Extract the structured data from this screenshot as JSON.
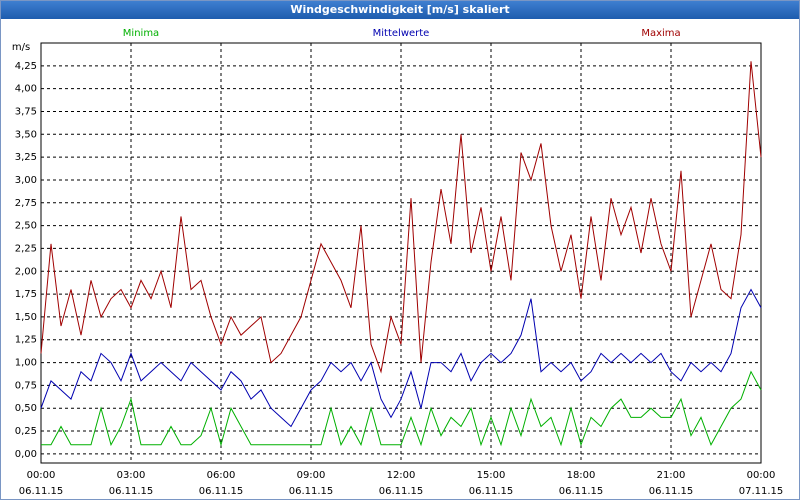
{
  "chart_data": {
    "type": "line",
    "title": "Windgeschwindigkeit [m/s] skaliert",
    "y_label": "m/s",
    "x": [
      0,
      20,
      40,
      60,
      80,
      100,
      120,
      140,
      160,
      180,
      200,
      220,
      240,
      260,
      280,
      300,
      320,
      340,
      360,
      380,
      400,
      420,
      440,
      460,
      480,
      500,
      520,
      540,
      560,
      580,
      600,
      620,
      640,
      660,
      680,
      700,
      720,
      740,
      760,
      780,
      800,
      820,
      840,
      860,
      880,
      900,
      920,
      940,
      960,
      980,
      1000,
      1020,
      1040,
      1060,
      1080,
      1100,
      1120,
      1140,
      1160,
      1180,
      1200,
      1220,
      1240,
      1260,
      1280,
      1300,
      1320,
      1340,
      1360,
      1380,
      1400,
      1420,
      1440
    ],
    "xlim": [
      0,
      1440
    ],
    "xticks": [
      {
        "value": 0,
        "label": "00:00"
      },
      {
        "value": 180,
        "label": "03:00"
      },
      {
        "value": 360,
        "label": "06:00"
      },
      {
        "value": 540,
        "label": "09:00"
      },
      {
        "value": 720,
        "label": "12:00"
      },
      {
        "value": 900,
        "label": "15:00"
      },
      {
        "value": 1080,
        "label": "18:00"
      },
      {
        "value": 1260,
        "label": "21:00"
      },
      {
        "value": 1440,
        "label": "00:00"
      }
    ],
    "xtick_dates": [
      "06.11.15",
      "06.11.15",
      "06.11.15",
      "06.11.15",
      "06.11.15",
      "06.11.15",
      "06.11.15",
      "06.11.15",
      "07.11.15"
    ],
    "ylim": [
      -0.1,
      4.5
    ],
    "yticks": [
      {
        "value": 0,
        "label": "0,00"
      },
      {
        "value": 0.25,
        "label": "0,25"
      },
      {
        "value": 0.5,
        "label": "0,50"
      },
      {
        "value": 0.75,
        "label": "0,75"
      },
      {
        "value": 1,
        "label": "1,00"
      },
      {
        "value": 1.25,
        "label": "1,25"
      },
      {
        "value": 1.5,
        "label": "1,50"
      },
      {
        "value": 1.75,
        "label": "1,75"
      },
      {
        "value": 2,
        "label": "2,00"
      },
      {
        "value": 2.25,
        "label": "2,25"
      },
      {
        "value": 2.5,
        "label": "2,50"
      },
      {
        "value": 2.75,
        "label": "2,75"
      },
      {
        "value": 3,
        "label": "3,00"
      },
      {
        "value": 3.25,
        "label": "3,25"
      },
      {
        "value": 3.5,
        "label": "3,50"
      },
      {
        "value": 3.75,
        "label": "3,75"
      },
      {
        "value": 4,
        "label": "4,00"
      },
      {
        "value": 4.25,
        "label": "4,25"
      }
    ],
    "grid": true,
    "series": [
      {
        "name": "Minima",
        "color": "#00b000",
        "values": [
          0.1,
          0.1,
          0.3,
          0.1,
          0.1,
          0.1,
          0.5,
          0.1,
          0.3,
          0.6,
          0.1,
          0.1,
          0.1,
          0.3,
          0.1,
          0.1,
          0.2,
          0.5,
          0.1,
          0.5,
          0.3,
          0.1,
          0.1,
          0.1,
          0.1,
          0.1,
          0.1,
          0.1,
          0.1,
          0.5,
          0.1,
          0.3,
          0.1,
          0.5,
          0.1,
          0.1,
          0.1,
          0.4,
          0.1,
          0.5,
          0.2,
          0.4,
          0.3,
          0.5,
          0.1,
          0.4,
          0.1,
          0.5,
          0.2,
          0.6,
          0.3,
          0.4,
          0.1,
          0.5,
          0.1,
          0.4,
          0.3,
          0.5,
          0.6,
          0.4,
          0.4,
          0.5,
          0.4,
          0.4,
          0.6,
          0.2,
          0.4,
          0.1,
          0.3,
          0.5,
          0.6,
          0.9,
          0.7
        ]
      },
      {
        "name": "Mittelwerte",
        "color": "#0000b0",
        "values": [
          0.5,
          0.8,
          0.7,
          0.6,
          0.9,
          0.8,
          1.1,
          1.0,
          0.8,
          1.1,
          0.8,
          0.9,
          1.0,
          0.9,
          0.8,
          1.0,
          0.9,
          0.8,
          0.7,
          0.9,
          0.8,
          0.6,
          0.7,
          0.5,
          0.4,
          0.3,
          0.5,
          0.7,
          0.8,
          1.0,
          0.9,
          1.0,
          0.8,
          1.0,
          0.6,
          0.4,
          0.6,
          0.9,
          0.5,
          1.0,
          1.0,
          0.9,
          1.1,
          0.8,
          1.0,
          1.1,
          1.0,
          1.1,
          1.3,
          1.7,
          0.9,
          1.0,
          0.9,
          1.0,
          0.8,
          0.9,
          1.1,
          1.0,
          1.1,
          1.0,
          1.1,
          1.0,
          1.1,
          0.9,
          0.8,
          1.0,
          0.9,
          1.0,
          0.9,
          1.1,
          1.6,
          1.8,
          1.6
        ]
      },
      {
        "name": "Maxima",
        "color": "#a00000",
        "values": [
          1.1,
          2.3,
          1.4,
          1.8,
          1.3,
          1.9,
          1.5,
          1.7,
          1.8,
          1.6,
          1.9,
          1.7,
          2.0,
          1.6,
          2.6,
          1.8,
          1.9,
          1.5,
          1.2,
          1.5,
          1.3,
          1.4,
          1.5,
          1.0,
          1.1,
          1.3,
          1.5,
          1.9,
          2.3,
          2.1,
          1.9,
          1.6,
          2.5,
          1.2,
          0.9,
          1.5,
          1.2,
          2.8,
          1.0,
          2.1,
          2.9,
          2.3,
          3.5,
          2.2,
          2.7,
          2.0,
          2.6,
          1.9,
          3.3,
          3.0,
          3.4,
          2.5,
          2.0,
          2.4,
          1.7,
          2.6,
          1.9,
          2.8,
          2.4,
          2.7,
          2.2,
          2.8,
          2.3,
          2.0,
          3.1,
          1.5,
          1.9,
          2.3,
          1.8,
          1.7,
          2.4,
          4.3,
          3.25
        ]
      }
    ]
  }
}
